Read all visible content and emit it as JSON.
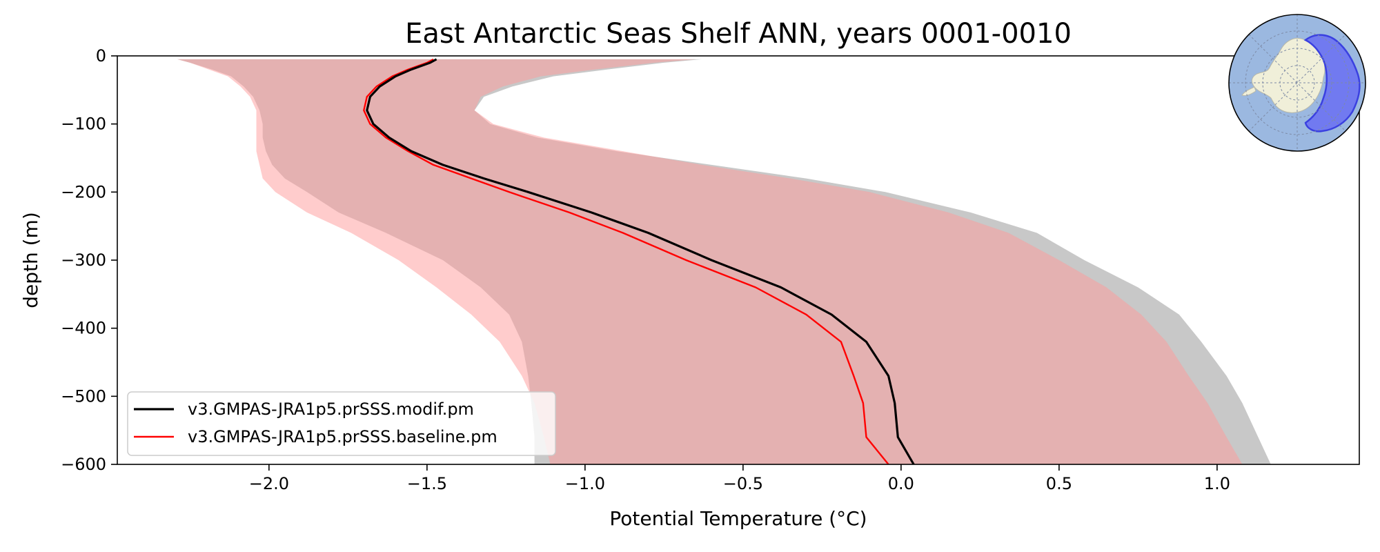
{
  "chart_data": {
    "type": "line",
    "title": "East Antarctic Seas Shelf ANN, years 0001-0010",
    "xlabel": "Potential Temperature (°C)",
    "ylabel": "depth (m)",
    "xlim": [
      -2.48,
      1.45
    ],
    "ylim": [
      -600,
      0
    ],
    "xticks": [
      -2.0,
      -1.5,
      -1.0,
      -0.5,
      0.0,
      0.5,
      1.0
    ],
    "xtick_labels": [
      "−2.0",
      "−1.5",
      "−1.0",
      "−0.5",
      "0.0",
      "0.5",
      "1.0"
    ],
    "yticks": [
      0,
      -100,
      -200,
      -300,
      -400,
      -500,
      -600
    ],
    "ytick_labels": [
      "0",
      "−100",
      "−200",
      "−300",
      "−400",
      "−500",
      "−600"
    ],
    "grid": false,
    "legend_position": "lower-left",
    "depth": [
      -5,
      -10,
      -20,
      -30,
      -45,
      -60,
      -80,
      -100,
      -120,
      -140,
      -160,
      -180,
      -200,
      -230,
      -260,
      -300,
      -340,
      -380,
      -420,
      -470,
      -510,
      -560,
      -600
    ],
    "series": [
      {
        "name": "v3.GMPAS-JRA1p5.prSSS.modif.pm",
        "color": "#000000",
        "mean": [
          -1.47,
          -1.49,
          -1.55,
          -1.6,
          -1.65,
          -1.68,
          -1.69,
          -1.67,
          -1.62,
          -1.55,
          -1.45,
          -1.32,
          -1.18,
          -0.98,
          -0.8,
          -0.6,
          -0.38,
          -0.22,
          -0.11,
          -0.04,
          -0.02,
          -0.01,
          0.04
        ],
        "band_lower": [
          -2.29,
          -2.25,
          -2.18,
          -2.12,
          -2.08,
          -2.05,
          -2.03,
          -2.02,
          -2.02,
          -2.01,
          -1.99,
          -1.95,
          -1.88,
          -1.78,
          -1.63,
          -1.45,
          -1.33,
          -1.24,
          -1.2,
          -1.18,
          -1.17,
          -1.16,
          -1.16
        ],
        "band_upper": [
          -0.63,
          -0.75,
          -0.93,
          -1.1,
          -1.23,
          -1.32,
          -1.35,
          -1.3,
          -1.15,
          -0.9,
          -0.6,
          -0.3,
          -0.05,
          0.22,
          0.43,
          0.58,
          0.75,
          0.88,
          0.95,
          1.03,
          1.08,
          1.13,
          1.17
        ],
        "band_color": "#c8c8c8"
      },
      {
        "name": "v3.GMPAS-JRA1p5.prSSS.baseline.pm",
        "color": "#ff0000",
        "mean": [
          -1.48,
          -1.5,
          -1.56,
          -1.61,
          -1.66,
          -1.69,
          -1.7,
          -1.68,
          -1.63,
          -1.56,
          -1.48,
          -1.36,
          -1.24,
          -1.05,
          -0.88,
          -0.68,
          -0.46,
          -0.3,
          -0.19,
          -0.15,
          -0.12,
          -0.11,
          -0.04
        ],
        "band_lower": [
          -2.29,
          -2.25,
          -2.19,
          -2.13,
          -2.09,
          -2.06,
          -2.04,
          -2.04,
          -2.04,
          -2.04,
          -2.03,
          -2.02,
          -1.98,
          -1.88,
          -1.74,
          -1.59,
          -1.47,
          -1.36,
          -1.27,
          -1.2,
          -1.16,
          -1.13,
          -1.11
        ],
        "band_upper": [
          -0.65,
          -0.78,
          -0.97,
          -1.14,
          -1.26,
          -1.33,
          -1.35,
          -1.29,
          -1.13,
          -0.88,
          -0.63,
          -0.35,
          -0.1,
          0.15,
          0.34,
          0.5,
          0.65,
          0.76,
          0.84,
          0.91,
          0.97,
          1.03,
          1.08
        ],
        "band_color": "#ff9999"
      }
    ]
  },
  "inset": {
    "description_icon": "antarctica-region-map-icon",
    "ocean_color": "#9bb8e0",
    "land_color": "#f0efd9",
    "region_color": "#6a6ef2"
  }
}
